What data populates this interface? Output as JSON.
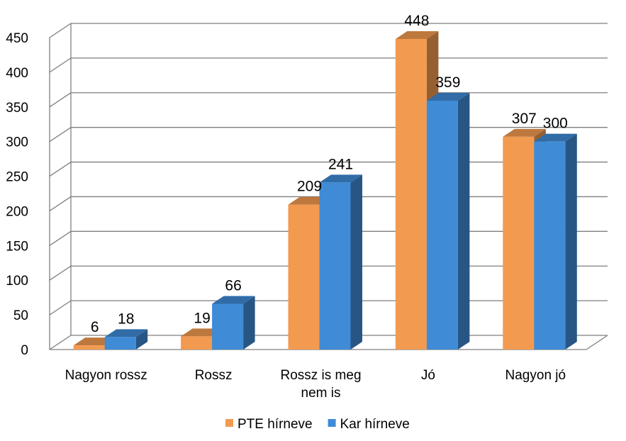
{
  "chart_data": {
    "type": "bar",
    "categories": [
      [
        "Nagyon rossz"
      ],
      [
        "Rossz"
      ],
      [
        "Rossz is meg",
        "nem is"
      ],
      [
        "Jó"
      ],
      [
        "Nagyon jó"
      ]
    ],
    "series": [
      {
        "name": "PTE hírneve",
        "values": [
          6,
          19,
          209,
          448,
          307
        ],
        "color": "#F29A50"
      },
      {
        "name": "Kar hírneve",
        "values": [
          18,
          66,
          241,
          359,
          300
        ],
        "color": "#3F8BD6"
      }
    ],
    "yticks": [
      0,
      50,
      100,
      150,
      200,
      250,
      300,
      350,
      400,
      450
    ],
    "ylim": [
      0,
      450
    ],
    "grid": true,
    "legend": "bottom",
    "three_d": true
  }
}
